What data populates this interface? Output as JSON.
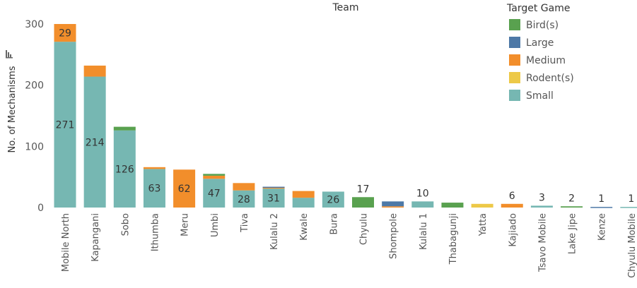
{
  "chart_data": {
    "type": "bar",
    "stacked": true,
    "title": "Team",
    "xlabel": "",
    "ylabel": "No. of Mechanisms",
    "ylim": [
      0,
      300
    ],
    "yticks": [
      0,
      100,
      200,
      300
    ],
    "grid": false,
    "legend_placement": "top-right",
    "legend": {
      "title": "Target Game",
      "entries": [
        {
          "name": "Bird(s)",
          "color": "#59a14f"
        },
        {
          "name": "Large",
          "color": "#4e79a7"
        },
        {
          "name": "Medium",
          "color": "#f28e2b"
        },
        {
          "name": "Rodent(s)",
          "color": "#edc948"
        },
        {
          "name": "Small",
          "color": "#76b7b2"
        }
      ]
    },
    "categories": [
      "Mobile North",
      "Kapangani",
      "Sobo",
      "Ithumba",
      "Meru",
      "Umbi",
      "Tiva",
      "Kulalu 2",
      "Kwale",
      "Bura",
      "Chyulu",
      "Shompole",
      "Kulalu 1",
      "Thabagunji",
      "Yatta",
      "Kajiado",
      "Tsavo Mobile",
      "Lake Jipe",
      "Kenze",
      "Chyulu Mobile"
    ],
    "series": [
      {
        "name": "Small",
        "color": "#76b7b2",
        "values": [
          271,
          214,
          126,
          63,
          0,
          47,
          28,
          31,
          16,
          26,
          0,
          0,
          10,
          0,
          0,
          0,
          3,
          0,
          0,
          1
        ]
      },
      {
        "name": "Medium",
        "color": "#f28e2b",
        "values": [
          29,
          18,
          0,
          3,
          62,
          5,
          12,
          2,
          11,
          0,
          0,
          2,
          0,
          0,
          0,
          6,
          0,
          0,
          0,
          0
        ]
      },
      {
        "name": "Bird(s)",
        "color": "#59a14f",
        "values": [
          0,
          0,
          6,
          0,
          0,
          3,
          0,
          0,
          0,
          0,
          17,
          0,
          0,
          8,
          0,
          0,
          0,
          2,
          0,
          0
        ]
      },
      {
        "name": "Large",
        "color": "#4e79a7",
        "values": [
          0,
          0,
          0,
          0,
          0,
          0,
          0,
          1,
          0,
          0,
          0,
          8,
          0,
          0,
          0,
          0,
          0,
          0,
          1,
          0
        ]
      },
      {
        "name": "Rodent(s)",
        "color": "#edc948",
        "values": [
          0,
          0,
          0,
          0,
          0,
          0,
          0,
          0,
          0,
          0,
          0,
          0,
          0,
          0,
          6,
          0,
          0,
          0,
          0,
          0
        ]
      }
    ],
    "inner_labels": [
      {
        "category": "Mobile North",
        "series": "Medium",
        "text": "29"
      },
      {
        "category": "Mobile North",
        "series": "Small",
        "text": "271"
      },
      {
        "category": "Kapangani",
        "series": "Small",
        "text": "214"
      },
      {
        "category": "Sobo",
        "series": "Small",
        "text": "126"
      },
      {
        "category": "Ithumba",
        "series": "Small",
        "text": "63"
      },
      {
        "category": "Meru",
        "series": "Medium",
        "text": "62"
      },
      {
        "category": "Umbi",
        "series": "Small",
        "text": "47"
      },
      {
        "category": "Tiva",
        "series": "Small",
        "text": "28"
      },
      {
        "category": "Kulalu 2",
        "series": "Small",
        "text": "31"
      },
      {
        "category": "Bura",
        "series": "Small",
        "text": "26"
      }
    ],
    "top_labels": [
      {
        "category": "Chyulu",
        "text": "17"
      },
      {
        "category": "Kulalu 1",
        "text": "10"
      },
      {
        "category": "Kajiado",
        "text": "6"
      },
      {
        "category": "Tsavo Mobile",
        "text": "3"
      },
      {
        "category": "Lake Jipe",
        "text": "2"
      },
      {
        "category": "Kenze",
        "text": "1"
      },
      {
        "category": "Chyulu Mobile",
        "text": "1"
      }
    ]
  }
}
